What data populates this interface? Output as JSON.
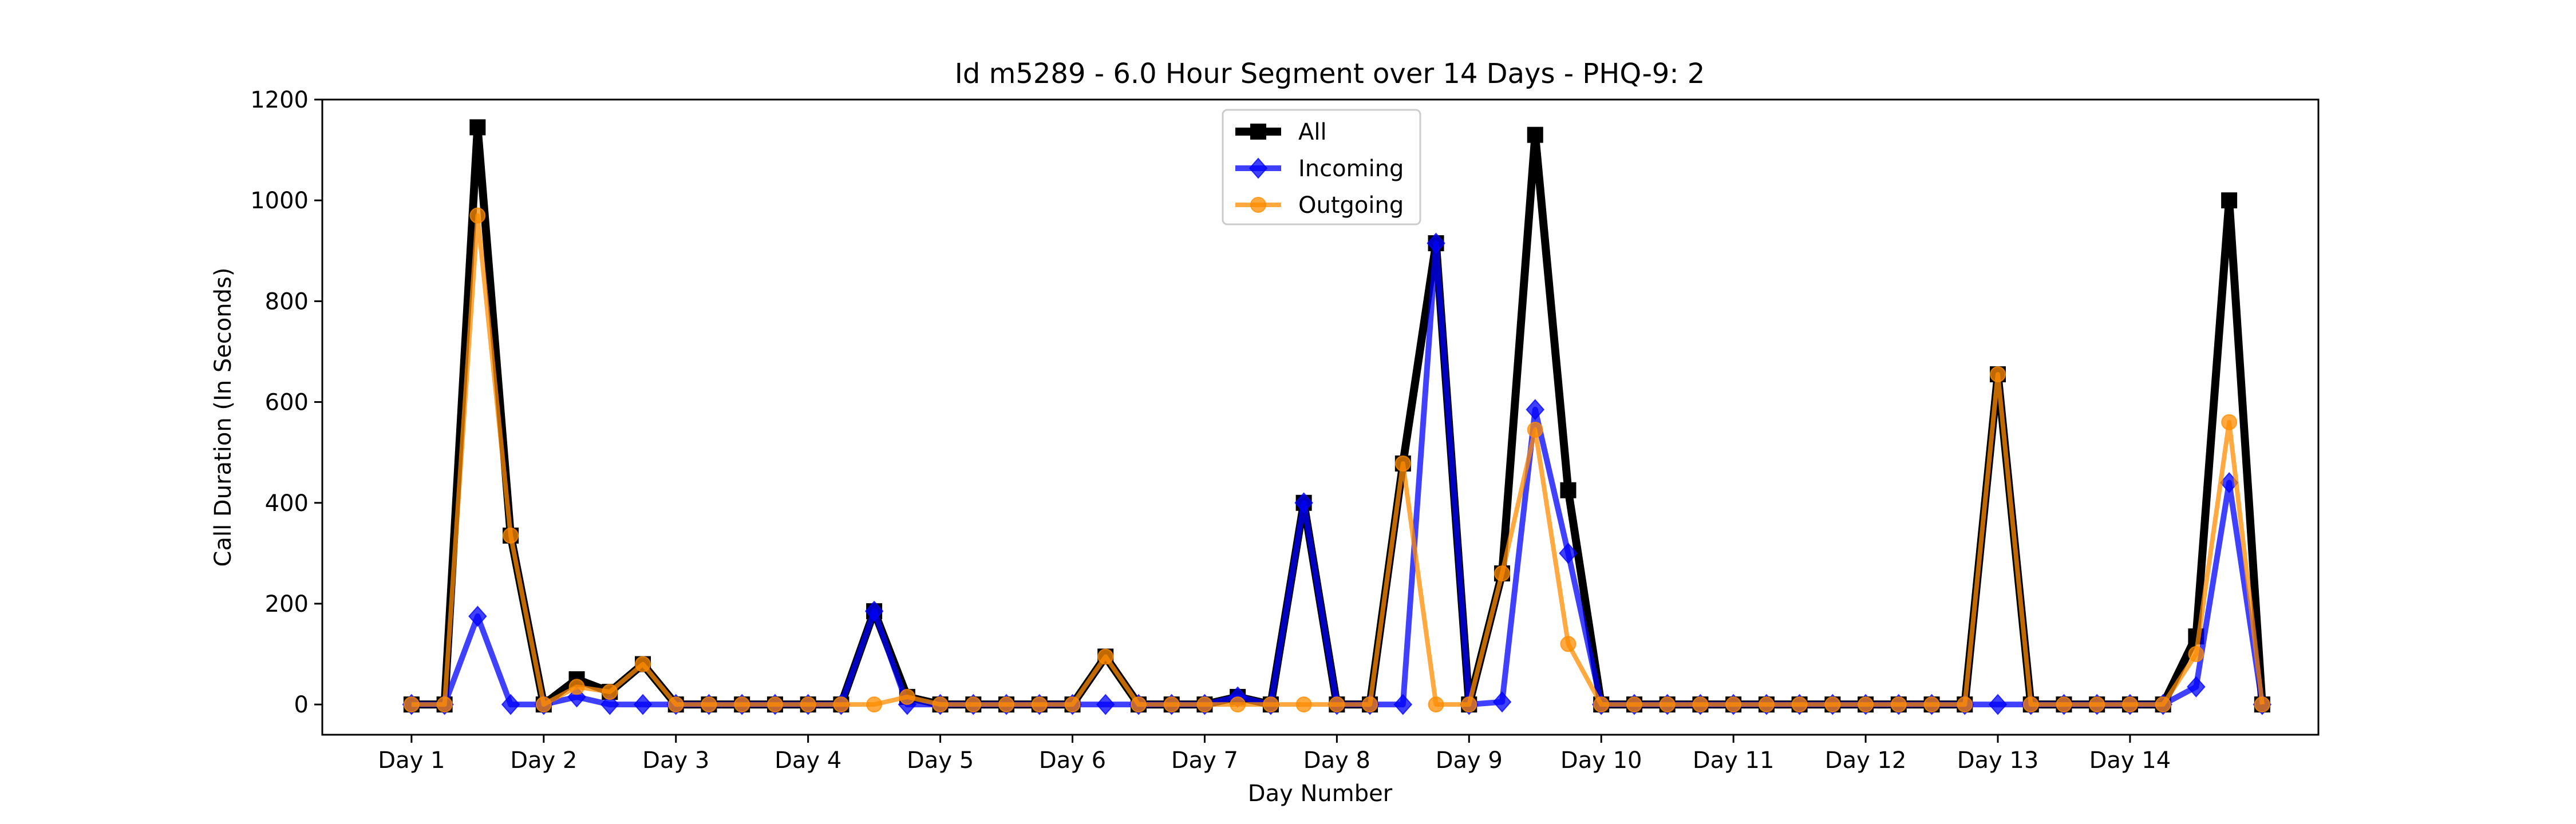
{
  "chart_data": {
    "type": "line",
    "title": "Id m5289 - 6.0 Hour Segment over 14 Days - PHQ-9: 2",
    "xlabel": "Day Number",
    "ylabel": "Call Duration (In Seconds)",
    "ylim": [
      -60,
      1200
    ],
    "yticks": [
      0,
      200,
      400,
      600,
      800,
      1000,
      1200
    ],
    "xticks": [
      {
        "pos": 0,
        "label": "Day 1"
      },
      {
        "pos": 4,
        "label": "Day 2"
      },
      {
        "pos": 8,
        "label": "Day 3"
      },
      {
        "pos": 12,
        "label": "Day 4"
      },
      {
        "pos": 16,
        "label": "Day 5"
      },
      {
        "pos": 20,
        "label": "Day 6"
      },
      {
        "pos": 24,
        "label": "Day 7"
      },
      {
        "pos": 28,
        "label": "Day 8"
      },
      {
        "pos": 32,
        "label": "Day 9"
      },
      {
        "pos": 36,
        "label": "Day 10"
      },
      {
        "pos": 40,
        "label": "Day 11"
      },
      {
        "pos": 44,
        "label": "Day 12"
      },
      {
        "pos": 48,
        "label": "Day 13"
      },
      {
        "pos": 52,
        "label": "Day 14"
      }
    ],
    "xlim": [
      -2.7,
      57.7
    ],
    "grid": false,
    "legend_position": "top-center",
    "series": [
      {
        "name": "All",
        "color": "#000000",
        "marker": "square",
        "values": [
          0,
          0,
          1145,
          335,
          0,
          50,
          25,
          80,
          0,
          0,
          0,
          0,
          0,
          0,
          185,
          15,
          0,
          0,
          0,
          0,
          0,
          95,
          0,
          0,
          0,
          15,
          0,
          400,
          0,
          0,
          478,
          915,
          0,
          260,
          1130,
          425,
          0,
          0,
          0,
          0,
          0,
          0,
          0,
          0,
          0,
          0,
          0,
          0,
          655,
          0,
          0,
          0,
          0,
          0,
          135,
          1000,
          0
        ]
      },
      {
        "name": "Incoming",
        "color": "#0000ff",
        "marker": "diamond",
        "values": [
          0,
          0,
          175,
          0,
          0,
          15,
          0,
          0,
          0,
          0,
          0,
          0,
          0,
          0,
          185,
          0,
          0,
          0,
          0,
          0,
          0,
          0,
          0,
          0,
          0,
          15,
          0,
          400,
          0,
          0,
          0,
          915,
          0,
          5,
          585,
          300,
          0,
          0,
          0,
          0,
          0,
          0,
          0,
          0,
          0,
          0,
          0,
          0,
          0,
          0,
          0,
          0,
          0,
          0,
          35,
          440,
          0
        ]
      },
      {
        "name": "Outgoing",
        "color": "#ff8c00",
        "marker": "circle",
        "values": [
          0,
          0,
          970,
          335,
          0,
          35,
          25,
          80,
          0,
          0,
          0,
          0,
          0,
          0,
          0,
          15,
          0,
          0,
          0,
          0,
          0,
          95,
          0,
          0,
          0,
          0,
          0,
          0,
          0,
          0,
          478,
          0,
          0,
          260,
          545,
          120,
          0,
          0,
          0,
          0,
          0,
          0,
          0,
          0,
          0,
          0,
          0,
          0,
          655,
          0,
          0,
          0,
          0,
          0,
          100,
          560,
          0
        ]
      }
    ]
  }
}
